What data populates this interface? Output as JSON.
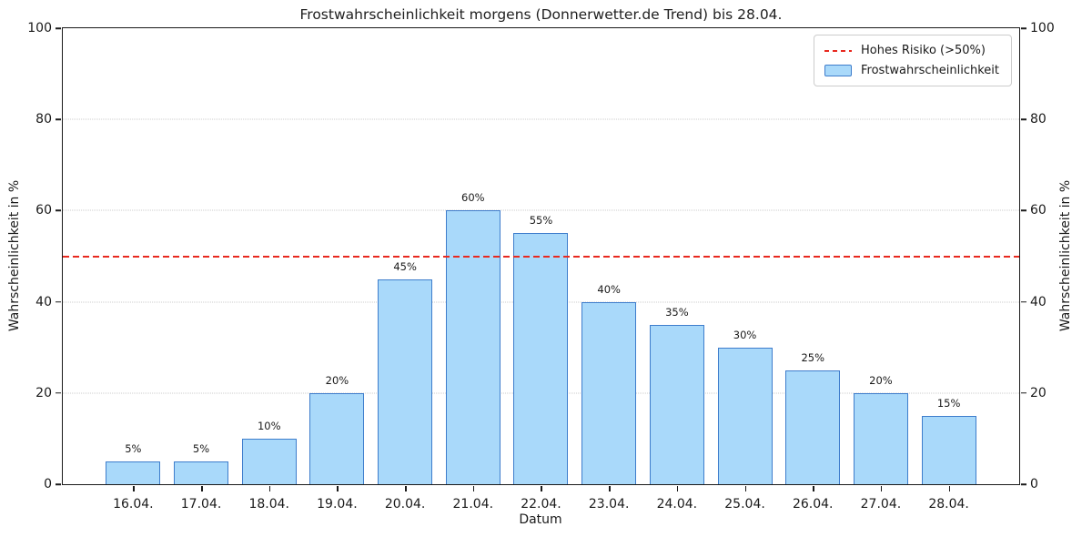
{
  "figure": {
    "title": "Frostwahrscheinlichkeit morgens (Donnerwetter.de Trend) bis 28.04.",
    "x_axis_label": "Datum",
    "y_axis_label_left": "Wahrscheinlichkeit in %",
    "y_axis_label_right": "Wahrscheinlichkeit in %"
  },
  "legend": {
    "risk_label": "Hohes Risiko (>50%)",
    "bars_label": "Frostwahrscheinlichkeit"
  },
  "colors": {
    "bar_fill": "#a9d9fa",
    "bar_edge": "#3e7dcc",
    "threshold_red": "#e8291f",
    "grid": "#cccccc",
    "axis": "#1a1a1a"
  },
  "chart_data": {
    "type": "bar",
    "title": "Frostwahrscheinlichkeit morgens (Donnerwetter.de Trend) bis 28.04.",
    "xlabel": "Datum",
    "ylabel": "Wahrscheinlichkeit in %",
    "categories": [
      "16.04.",
      "17.04.",
      "18.04.",
      "19.04.",
      "20.04.",
      "21.04.",
      "22.04.",
      "23.04.",
      "24.04.",
      "25.04.",
      "26.04.",
      "27.04.",
      "28.04."
    ],
    "values": [
      5,
      5,
      10,
      20,
      45,
      60,
      55,
      40,
      35,
      30,
      25,
      20,
      15
    ],
    "bar_value_labels": [
      "5%",
      "5%",
      "10%",
      "20%",
      "45%",
      "60%",
      "55%",
      "40%",
      "35%",
      "30%",
      "25%",
      "20%",
      "15%"
    ],
    "y_ticks": [
      0,
      20,
      40,
      60,
      80,
      100
    ],
    "ylim": [
      0,
      100
    ],
    "grid": "horizontal-dotted",
    "gridline_levels": [
      20,
      40,
      60,
      80
    ],
    "legend_position": "upper-right",
    "legend_entries": [
      "Hohes Risiko (>50%)",
      "Frostwahrscheinlichkeit"
    ],
    "threshold_line": {
      "y": 50,
      "style": "dashed",
      "color": "#e8291f",
      "label": "Hohes Risiko (>50%)"
    },
    "bar_fill": "#a9d9fa",
    "bar_edge": "#3e7dcc"
  }
}
